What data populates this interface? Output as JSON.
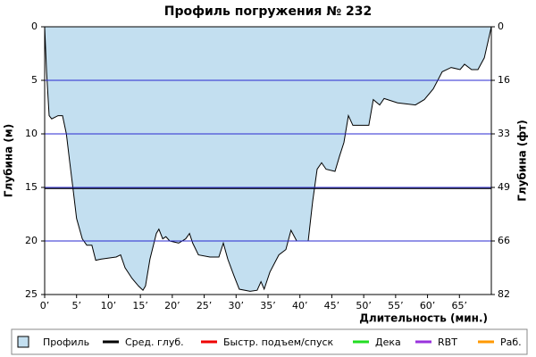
{
  "chart_data": {
    "type": "area",
    "title": "Профиль погружения № 232",
    "y_label": "Глубина (м)",
    "y2_label": "Глубина (фт)",
    "x_label": "Длительность (мин.)",
    "xlim": [
      0,
      70
    ],
    "xticks": [
      {
        "value": 0,
        "label": "0’"
      },
      {
        "value": 5,
        "label": "5’"
      },
      {
        "value": 10,
        "label": "10’"
      },
      {
        "value": 15,
        "label": "15’"
      },
      {
        "value": 20,
        "label": "20’"
      },
      {
        "value": 25,
        "label": "25’"
      },
      {
        "value": 30,
        "label": "30’"
      },
      {
        "value": 35,
        "label": "35’"
      },
      {
        "value": 40,
        "label": "40’"
      },
      {
        "value": 45,
        "label": "45’"
      },
      {
        "value": 50,
        "label": "50’"
      },
      {
        "value": 55,
        "label": "55’"
      },
      {
        "value": 60,
        "label": "60’"
      },
      {
        "value": 65,
        "label": "65’"
      }
    ],
    "ylim": [
      0,
      25
    ],
    "yticks": [
      0,
      5,
      10,
      15,
      20,
      25
    ],
    "y_inverted": true,
    "y2lim": [
      0,
      82
    ],
    "y2ticks": [
      0,
      {
        "value": 16.4,
        "label": "16"
      },
      {
        "value": 32.8,
        "label": "33"
      },
      {
        "value": 49.2,
        "label": "49"
      },
      {
        "value": 65.6,
        "label": "66"
      },
      82
    ],
    "grid": true,
    "grid_color": "#2a2ad0",
    "series": [
      {
        "name": "Профиль",
        "color": "#c3dff0",
        "x": [
          0,
          0.3,
          0.7,
          1.1,
          2.1,
          2.8,
          3.4,
          3.9,
          4.5,
          5,
          5.9,
          6.6,
          7.4,
          8,
          8.8,
          11.2,
          11.9,
          12.6,
          13.7,
          14.7,
          15.4,
          15.8,
          16.5,
          17.5,
          17.9,
          18.5,
          19,
          19.6,
          21,
          22.1,
          22.7,
          23.2,
          24.1,
          25.9,
          27.3,
          28,
          28.7,
          29.7,
          30.5,
          32.2,
          33.3,
          33.9,
          34.4,
          35.3,
          36.7,
          37.8,
          38.6,
          39.5,
          41.3,
          42,
          42.7,
          43.4,
          44.1,
          45.5,
          46.2,
          46.9,
          47.6,
          48.3,
          50.8,
          51.5,
          52.5,
          53.2,
          55.3,
          58.1,
          59.5,
          60.9,
          62.3,
          63.7,
          65.1,
          65.8,
          66.9,
          67.9,
          68.9,
          69.7,
          70
        ],
        "values": [
          0,
          4.2,
          8.3,
          8.6,
          8.3,
          8.3,
          10,
          12.5,
          15.4,
          17.9,
          19.8,
          20.4,
          20.4,
          21.8,
          21.7,
          21.5,
          21.3,
          22.5,
          23.5,
          24.2,
          24.6,
          24.2,
          21.7,
          19.3,
          18.9,
          19.8,
          19.6,
          20,
          20.2,
          19.8,
          19.3,
          20.2,
          21.3,
          21.5,
          21.5,
          20.2,
          21.7,
          23.3,
          24.5,
          24.7,
          24.6,
          23.8,
          24.5,
          22.9,
          21.3,
          20.8,
          19,
          20,
          20,
          16.3,
          13.3,
          12.7,
          13.3,
          13.5,
          12.1,
          10.8,
          8.3,
          9.2,
          9.2,
          6.8,
          7.3,
          6.7,
          7.1,
          7.3,
          6.8,
          5.8,
          4.2,
          3.8,
          4,
          3.5,
          4,
          4,
          2.9,
          0.8,
          0
        ]
      },
      {
        "name": "Сред. глуб.",
        "color": "#000000",
        "value": 15.1
      },
      {
        "name": "Быстр. подъем/спуск",
        "color": "#ee0000"
      },
      {
        "name": "Дека",
        "color": "#22dd22"
      },
      {
        "name": "RBT",
        "color": "#9933dd"
      },
      {
        "name": "Раб.",
        "color": "#ff9900"
      }
    ]
  }
}
